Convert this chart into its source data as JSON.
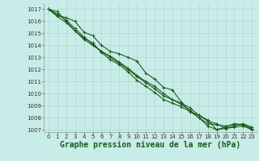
{
  "title": "Graphe pression niveau de la mer (hPa)",
  "background_color": "#c8ece8",
  "grid_color": "#b0d8d0",
  "line_color": "#1a5c1a",
  "xlim": [
    -0.5,
    23.5
  ],
  "ylim": [
    1006.8,
    1017.5
  ],
  "yticks": [
    1007,
    1008,
    1009,
    1010,
    1011,
    1012,
    1013,
    1014,
    1015,
    1016,
    1017
  ],
  "xticks": [
    0,
    1,
    2,
    3,
    4,
    5,
    6,
    7,
    8,
    9,
    10,
    11,
    12,
    13,
    14,
    15,
    16,
    17,
    18,
    19,
    20,
    21,
    22,
    23
  ],
  "series": [
    [
      1017.0,
      1016.5,
      1016.3,
      1016.0,
      1015.1,
      1014.8,
      1014.0,
      1013.5,
      1013.3,
      1013.0,
      1012.7,
      1011.7,
      1011.2,
      1010.5,
      1010.3,
      1009.3,
      1008.5,
      1008.2,
      1007.8,
      1007.0,
      1007.2,
      1007.5,
      1007.4,
      1007.0
    ],
    [
      1017.0,
      1016.8,
      1016.0,
      1015.2,
      1014.5,
      1014.0,
      1013.5,
      1013.0,
      1012.5,
      1012.0,
      1011.4,
      1010.9,
      1010.4,
      1009.8,
      1009.5,
      1009.2,
      1008.8,
      1008.2,
      1007.7,
      1007.5,
      1007.1,
      1007.3,
      1007.5,
      1007.2
    ],
    [
      1017.0,
      1016.6,
      1016.1,
      1015.4,
      1014.7,
      1014.1,
      1013.5,
      1013.1,
      1012.6,
      1012.1,
      1011.5,
      1011.0,
      1010.6,
      1010.0,
      1009.5,
      1009.1,
      1008.6,
      1008.0,
      1007.5,
      1007.4,
      1007.3,
      1007.4,
      1007.4,
      1007.1
    ],
    [
      1017.0,
      1016.4,
      1015.9,
      1015.2,
      1014.6,
      1014.2,
      1013.4,
      1012.8,
      1012.4,
      1011.8,
      1011.1,
      1010.6,
      1010.1,
      1009.5,
      1009.2,
      1008.9,
      1008.5,
      1008.0,
      1007.3,
      1007.0,
      1007.1,
      1007.2,
      1007.3,
      1007.0
    ]
  ],
  "marker": "+",
  "marker_size": 3,
  "line_width": 0.8,
  "title_fontsize": 7,
  "tick_fontsize": 5
}
